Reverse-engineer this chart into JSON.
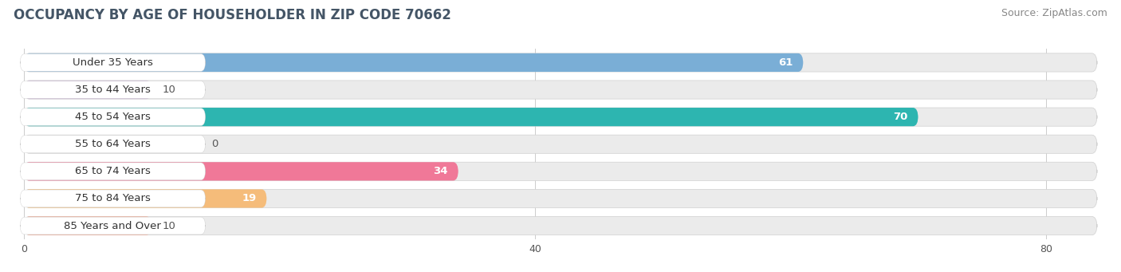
{
  "title": "OCCUPANCY BY AGE OF HOUSEHOLDER IN ZIP CODE 70662",
  "source": "Source: ZipAtlas.com",
  "categories": [
    "Under 35 Years",
    "35 to 44 Years",
    "45 to 54 Years",
    "55 to 64 Years",
    "65 to 74 Years",
    "75 to 84 Years",
    "85 Years and Over"
  ],
  "values": [
    61,
    10,
    70,
    0,
    34,
    19,
    10
  ],
  "bar_colors": [
    "#7aaed6",
    "#b89ec8",
    "#2db5b0",
    "#9b9ed4",
    "#f07898",
    "#f5bc7a",
    "#f0a088"
  ],
  "label_pill_colors": [
    "#7aaed6",
    "#b89ec8",
    "#2db5b0",
    "#9b9ed4",
    "#f07898",
    "#f5bc7a",
    "#f0a088"
  ],
  "bar_bg_color": "#ebebeb",
  "xlim_min": 0,
  "xlim_max": 84,
  "xticks": [
    0,
    40,
    80
  ],
  "title_fontsize": 12,
  "source_fontsize": 9,
  "label_fontsize": 9.5,
  "value_fontsize": 9.5,
  "background_color": "#ffffff"
}
